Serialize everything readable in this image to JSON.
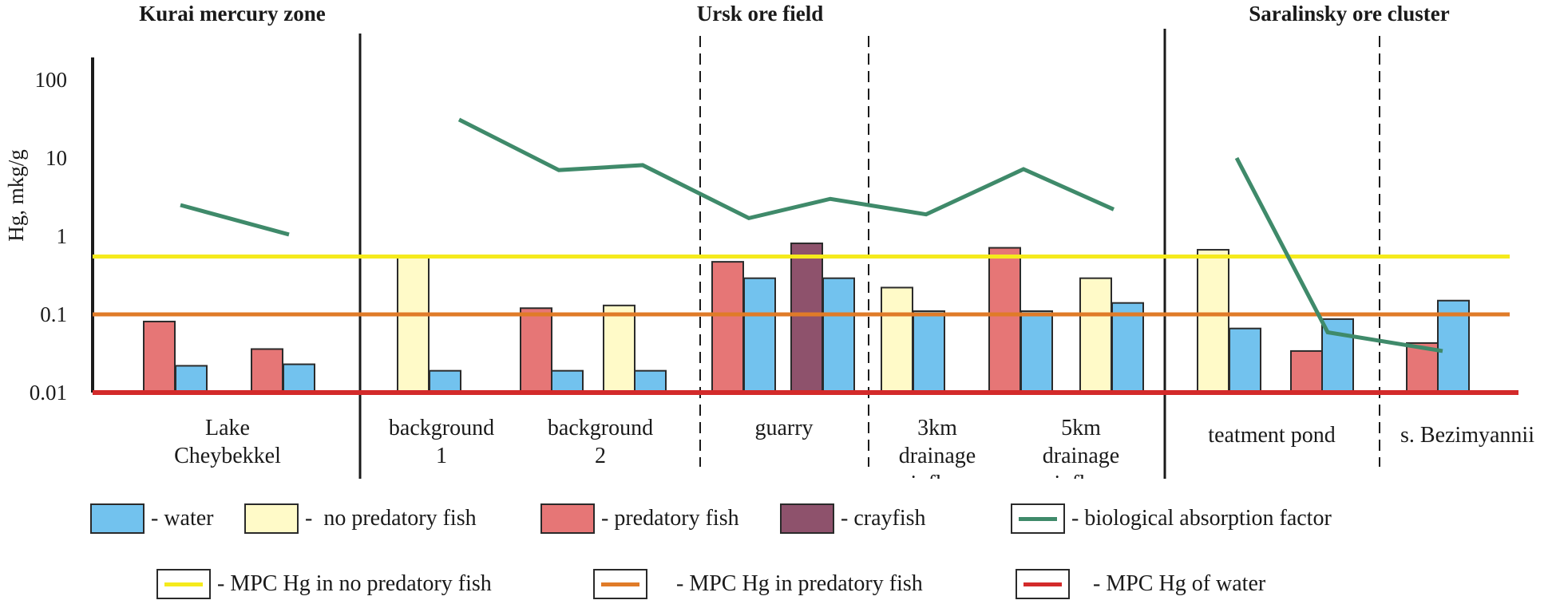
{
  "chart_data": {
    "type": "bar",
    "title": "",
    "ylabel": "Hg, mkg/g",
    "xlabel": "",
    "yscale": "log",
    "ylim": [
      0.01,
      100
    ],
    "yticks": [
      "100",
      "10",
      "1",
      "0.1",
      "0.01"
    ],
    "ytick_values": [
      100,
      10,
      1,
      0.1,
      0.01
    ],
    "grid": false,
    "zones": [
      {
        "name": "Kurai mercury zone"
      },
      {
        "name": "Ursk ore field"
      },
      {
        "name": "Saralinsky ore cluster"
      }
    ],
    "sites": [
      {
        "label": [
          "Lake",
          "Cheybekkel"
        ],
        "zone": "Kurai mercury zone"
      },
      {
        "label": [
          "background",
          "1"
        ],
        "zone": "Ursk ore field"
      },
      {
        "label": [
          "background",
          "2"
        ],
        "zone": "Ursk ore field"
      },
      {
        "label": [
          "guarry"
        ],
        "zone": "Ursk ore field"
      },
      {
        "label": [
          "3km",
          "drainage",
          "influx"
        ],
        "zone": "Ursk ore field"
      },
      {
        "label": [
          "5km",
          "drainage",
          "influx"
        ],
        "zone": "Ursk ore field"
      },
      {
        "label": [
          "teatment pond"
        ],
        "zone": "Saralinsky ore cluster"
      },
      {
        "label": [
          "s. Bezimyannii"
        ],
        "zone": "Saralinsky ore cluster"
      }
    ],
    "bars": [
      {
        "site": 0,
        "series": "predatory fish",
        "value": 0.081
      },
      {
        "site": 0,
        "series": "water",
        "value": 0.022
      },
      {
        "site": 0,
        "series": "predatory fish",
        "value": 0.036
      },
      {
        "site": 0,
        "series": "water",
        "value": 0.023
      },
      {
        "site": 1,
        "series": "no predatory fish",
        "value": 0.54
      },
      {
        "site": 1,
        "series": "water",
        "value": 0.019
      },
      {
        "site": 2,
        "series": "predatory fish",
        "value": 0.12
      },
      {
        "site": 2,
        "series": "water",
        "value": 0.019
      },
      {
        "site": 2,
        "series": "no predatory fish",
        "value": 0.13
      },
      {
        "site": 2,
        "series": "water",
        "value": 0.019
      },
      {
        "site": 3,
        "series": "predatory fish",
        "value": 0.47
      },
      {
        "site": 3,
        "series": "water",
        "value": 0.29
      },
      {
        "site": 3,
        "series": "crayfish",
        "value": 0.81
      },
      {
        "site": 3,
        "series": "water",
        "value": 0.29
      },
      {
        "site": 4,
        "series": "no predatory fish",
        "value": 0.22
      },
      {
        "site": 4,
        "series": "water",
        "value": 0.11
      },
      {
        "site": 5,
        "series": "predatory fish",
        "value": 0.71
      },
      {
        "site": 5,
        "series": "water",
        "value": 0.11
      },
      {
        "site": 5,
        "series": "no predatory fish",
        "value": 0.29
      },
      {
        "site": 5,
        "series": "water",
        "value": 0.14
      },
      {
        "site": 6,
        "series": "no predatory fish",
        "value": 0.67
      },
      {
        "site": 6,
        "series": "water",
        "value": 0.066
      },
      {
        "site": 6,
        "series": "predatory fish",
        "value": 0.034
      },
      {
        "site": 6,
        "series": "water",
        "value": 0.087
      },
      {
        "site": 7,
        "series": "predatory fish",
        "value": 0.043
      },
      {
        "site": 7,
        "series": "water",
        "value": 0.15
      }
    ],
    "absorption_factor_lines": [
      {
        "zone": "Kurai mercury zone",
        "values": [
          2.5,
          1.05
        ]
      },
      {
        "zone": "Ursk ore field",
        "values": [
          31,
          7.0,
          8.1,
          1.7,
          3.0,
          1.9,
          7.2,
          2.2
        ]
      },
      {
        "zone": "Saralinsky ore cluster",
        "values": [
          10,
          0.059,
          0.034
        ]
      }
    ],
    "reference_lines": [
      {
        "name": "MPC Hg in no predatory fish",
        "value": 0.55,
        "color": "#f5ea1c"
      },
      {
        "name": "MPC Hg in predatory fish",
        "value": 0.1,
        "color": "#e07b28"
      },
      {
        "name": "MPC Hg of water",
        "value": 0.01,
        "color": "#d32a2a"
      }
    ],
    "series_colors": {
      "water": "#72c2ee",
      "no predatory fish": "#fffac8",
      "predatory fish": "#e67676",
      "crayfish": "#8e526c",
      "biological absorption factor": "#3f8a6a"
    },
    "legend": {
      "placement": "bottom",
      "row1": [
        {
          "kind": "box",
          "series": "water",
          "text": "- water"
        },
        {
          "kind": "box",
          "series": "no predatory fish",
          "text": "-  no predatory fish"
        },
        {
          "kind": "box",
          "series": "predatory fish",
          "text": "- predatory fish"
        },
        {
          "kind": "box",
          "series": "crayfish",
          "text": "- crayfish"
        },
        {
          "kind": "line",
          "series": "biological absorption factor",
          "text": "- biological absorption factor"
        }
      ],
      "row2": [
        {
          "kind": "line",
          "color": "#f5ea1c",
          "text": "- MPC Hg in no predatory fish"
        },
        {
          "kind": "line",
          "color": "#e07b28",
          "text": "    - MPC Hg in predatory fish"
        },
        {
          "kind": "line",
          "color": "#d32a2a",
          "text": "   - MPC Hg of water"
        }
      ]
    }
  }
}
